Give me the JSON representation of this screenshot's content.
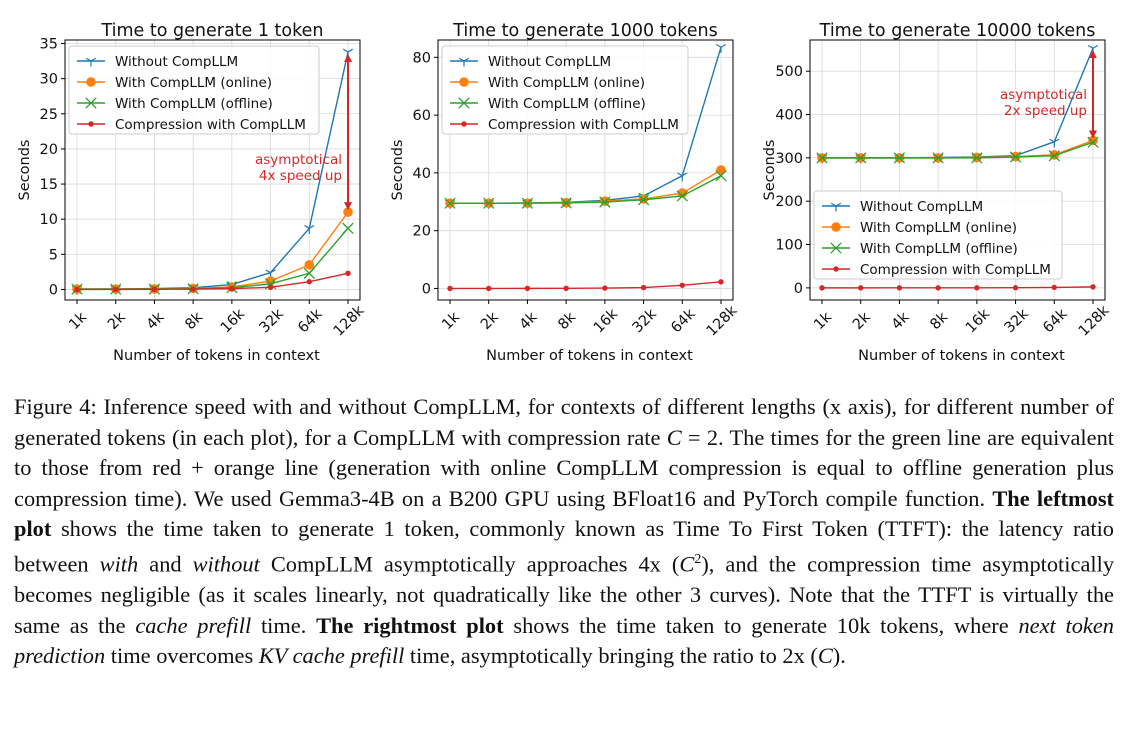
{
  "figure": {
    "xlabel": "Number of tokens in context",
    "ylabel": "Seconds",
    "x_ticks": [
      "1k",
      "2k",
      "4k",
      "8k",
      "16k",
      "32k",
      "64k",
      "128k"
    ]
  },
  "chart_data": [
    {
      "type": "line",
      "title": "Time to generate 1 token",
      "xlabel": "Number of tokens in context",
      "ylabel": "Seconds",
      "categories": [
        "1k",
        "2k",
        "4k",
        "8k",
        "16k",
        "32k",
        "64k",
        "128k"
      ],
      "ylim": [
        -1.5,
        35.5
      ],
      "yticks": [
        0,
        5,
        10,
        15,
        20,
        25,
        30,
        35
      ],
      "grid": true,
      "legend_position": "top-left",
      "series": [
        {
          "name": "Without CompLLM",
          "color": "#1f77b4",
          "marker": "tri_down",
          "values": [
            0.05,
            0.08,
            0.12,
            0.25,
            0.7,
            2.4,
            8.7,
            33.8
          ]
        },
        {
          "name": "With CompLLM (online)",
          "color": "#ff7f0e",
          "marker": "circle",
          "values": [
            0.05,
            0.06,
            0.08,
            0.15,
            0.35,
            1.2,
            3.5,
            11.0
          ]
        },
        {
          "name": "With CompLLM (offline)",
          "color": "#2ca02c",
          "marker": "x",
          "values": [
            0.05,
            0.05,
            0.06,
            0.1,
            0.25,
            0.8,
            2.3,
            8.7
          ]
        },
        {
          "name": "Compression with CompLLM",
          "color": "#d62728",
          "marker": "dot",
          "values": [
            0.0,
            0.01,
            0.02,
            0.05,
            0.12,
            0.3,
            1.1,
            2.3
          ]
        }
      ],
      "annotation": {
        "lines": [
          "asymptotical",
          "4x speed up"
        ],
        "color": "#d62728",
        "from": 33.8,
        "to": 11.0,
        "at": "128k"
      }
    },
    {
      "type": "line",
      "title": "Time to generate 1000 tokens",
      "xlabel": "Number of tokens in context",
      "ylabel": "Seconds",
      "categories": [
        "1k",
        "2k",
        "4k",
        "8k",
        "16k",
        "32k",
        "64k",
        "128k"
      ],
      "ylim": [
        -4,
        86
      ],
      "yticks": [
        0,
        20,
        40,
        60,
        80
      ],
      "grid": true,
      "legend_position": "top-left",
      "series": [
        {
          "name": "Without CompLLM",
          "color": "#1f77b4",
          "marker": "tri_down",
          "values": [
            29.5,
            29.5,
            29.6,
            29.8,
            30.5,
            32.0,
            39.0,
            83.5
          ]
        },
        {
          "name": "With CompLLM (online)",
          "color": "#ff7f0e",
          "marker": "circle",
          "values": [
            29.5,
            29.5,
            29.5,
            29.7,
            30.2,
            31.0,
            33.0,
            41.0
          ]
        },
        {
          "name": "With CompLLM (offline)",
          "color": "#2ca02c",
          "marker": "x",
          "values": [
            29.5,
            29.5,
            29.5,
            29.6,
            29.9,
            30.7,
            32.0,
            39.0
          ]
        },
        {
          "name": "Compression with CompLLM",
          "color": "#d62728",
          "marker": "dot",
          "values": [
            0.0,
            0.0,
            0.02,
            0.05,
            0.12,
            0.3,
            1.1,
            2.3
          ]
        }
      ]
    },
    {
      "type": "line",
      "title": "Time to generate 10000 tokens",
      "xlabel": "Number of tokens in context",
      "ylabel": "Seconds",
      "categories": [
        "1k",
        "2k",
        "4k",
        "8k",
        "16k",
        "32k",
        "64k",
        "128k"
      ],
      "ylim": [
        -28,
        572
      ],
      "yticks": [
        0,
        100,
        200,
        300,
        400,
        500
      ],
      "grid": true,
      "legend_position": "lower-left",
      "series": [
        {
          "name": "Without CompLLM",
          "color": "#1f77b4",
          "marker": "tri_down",
          "values": [
            300,
            300,
            300,
            301,
            302,
            305,
            337,
            553
          ]
        },
        {
          "name": "With CompLLM (online)",
          "color": "#ff7f0e",
          "marker": "circle",
          "values": [
            300,
            300,
            300,
            300,
            301,
            303,
            307,
            340
          ]
        },
        {
          "name": "With CompLLM (offline)",
          "color": "#2ca02c",
          "marker": "x",
          "values": [
            300,
            300,
            300,
            300,
            300,
            302,
            305,
            336
          ]
        },
        {
          "name": "Compression with CompLLM",
          "color": "#d62728",
          "marker": "dot",
          "values": [
            0.0,
            0.0,
            0.02,
            0.05,
            0.12,
            0.3,
            1.1,
            2.3
          ]
        }
      ],
      "annotation": {
        "lines": [
          "asymptotical",
          "2x speed up"
        ],
        "color": "#d62728",
        "from": 553,
        "to": 340,
        "at": "128k"
      }
    }
  ],
  "caption": {
    "fig_label": "Figure 4:",
    "s1": " Inference speed with and without CompLLM, for contexts of different lengths (x axis), for different number of generated tokens (in each plot), for a CompLLM with compression rate ",
    "math_c": "C",
    "math_eq": " = 2",
    "s2": ". The times for the green line are equivalent to those from red + orange line (generation with online CompLLM compression is equal to offline generation plus compression time). We used Gemma3-4B on a B200 GPU using BFloat16 and PyTorch compile function. ",
    "bold1": "The leftmost plot",
    "s3": " shows the time taken to generate 1 token, commonly known as Time To First Token (TTFT): the latency ratio between ",
    "i_with": "with",
    "s4": " and ",
    "i_without": "without",
    "s5": " CompLLM asymptotically approaches 4x (",
    "math_c2": "C",
    "math_sup": "2",
    "s6": "), and the compression time asymptotically becomes negligible (as it scales linearly, not quadratically like the other 3 curves). Note that the TTFT is virtually the same as the ",
    "i_prefill": "cache prefill",
    "s7": " time. ",
    "bold2": "The rightmost plot",
    "s8": " shows the time taken to generate 10k tokens, where ",
    "i_ntp": "next token prediction",
    "s9": " time overcomes ",
    "i_kv": "KV cache prefill",
    "s10": " time, asymptotically bringing the ratio to 2x (",
    "math_c3": "C",
    "s11": ")."
  }
}
